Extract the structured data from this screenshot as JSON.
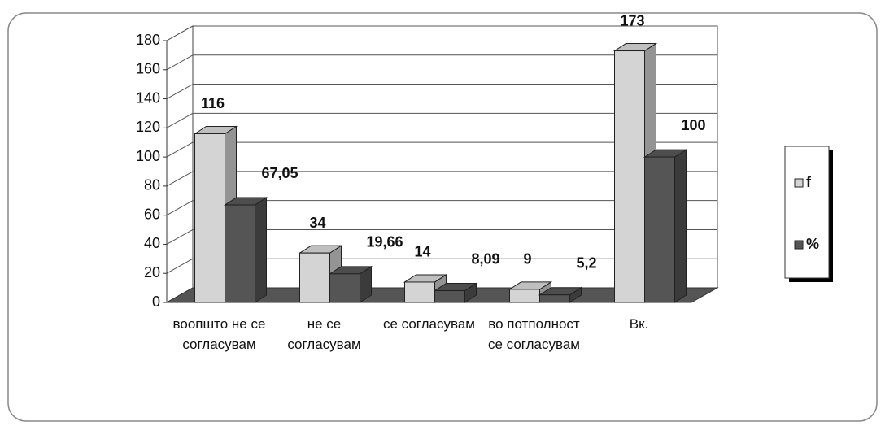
{
  "chart_data": {
    "type": "bar3d",
    "categories": [
      "воопшто не се согласувам",
      "не се согласувам",
      "се согласувам",
      "во потполност се согласувам",
      "Вк."
    ],
    "series": [
      {
        "name": "f",
        "color": "#d4d4d4",
        "values": [
          116,
          34,
          14,
          9,
          173
        ]
      },
      {
        "name": "%",
        "color": "#555555",
        "values": [
          67.05,
          19.66,
          8.09,
          5.2,
          100
        ],
        "value_labels": [
          "67,05",
          "19,66",
          "8,09",
          "5,2",
          "100"
        ]
      }
    ],
    "ylim": [
      0,
      180
    ],
    "yticks": [
      0,
      20,
      40,
      60,
      80,
      100,
      120,
      140,
      160,
      180
    ],
    "grid": true,
    "legend": "right"
  }
}
